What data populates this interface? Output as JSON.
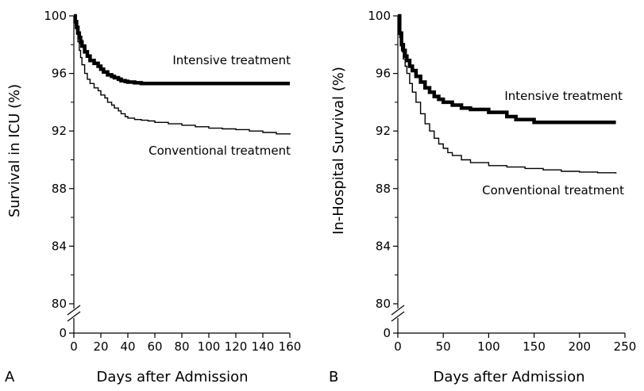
{
  "chart_data": [
    {
      "type": "line",
      "panel": "A",
      "xlabel": "Days after Admission",
      "ylabel": "Survival in ICU (%)",
      "xlim": [
        0,
        160
      ],
      "ylim": [
        80,
        100
      ],
      "y_axis_break": "broken between 0 and 80",
      "xticks": [
        0,
        20,
        40,
        60,
        80,
        100,
        120,
        140,
        160
      ],
      "yticks": [
        0,
        80,
        84,
        88,
        92,
        96,
        100
      ],
      "grid": false,
      "series": [
        {
          "name": "Intensive treatment",
          "color": "#000000",
          "style": "thick",
          "x": [
            0,
            1,
            2,
            3,
            4,
            5,
            6,
            8,
            10,
            12,
            15,
            18,
            20,
            22,
            25,
            28,
            30,
            33,
            35,
            38,
            40,
            45,
            50,
            60,
            80,
            100,
            120,
            140,
            160
          ],
          "y": [
            100,
            99.6,
            99.2,
            98.8,
            98.5,
            98.2,
            97.9,
            97.5,
            97.2,
            96.9,
            96.7,
            96.5,
            96.3,
            96.1,
            95.9,
            95.8,
            95.7,
            95.6,
            95.5,
            95.45,
            95.4,
            95.35,
            95.3,
            95.3,
            95.3,
            95.3,
            95.3,
            95.3,
            95.3
          ]
        },
        {
          "name": "Conventional treatment",
          "color": "#000000",
          "style": "thin",
          "x": [
            0,
            1,
            2,
            3,
            4,
            5,
            6,
            8,
            10,
            12,
            15,
            18,
            20,
            23,
            25,
            28,
            30,
            33,
            35,
            38,
            40,
            45,
            50,
            55,
            60,
            70,
            80,
            90,
            100,
            110,
            120,
            130,
            140,
            150,
            160
          ],
          "y": [
            100,
            99.4,
            98.8,
            98.2,
            97.6,
            97.1,
            96.6,
            96.0,
            95.6,
            95.3,
            95.0,
            94.8,
            94.5,
            94.3,
            94.0,
            93.8,
            93.6,
            93.4,
            93.2,
            93.0,
            92.9,
            92.8,
            92.75,
            92.7,
            92.6,
            92.5,
            92.4,
            92.3,
            92.2,
            92.15,
            92.1,
            92.0,
            91.9,
            91.8,
            91.75
          ]
        }
      ]
    },
    {
      "type": "line",
      "panel": "B",
      "xlabel": "Days after Admission",
      "ylabel": "In-Hospital Survival (%)",
      "xlim": [
        0,
        250
      ],
      "ylim": [
        80,
        100
      ],
      "y_axis_break": "broken between 0 and 80",
      "xticks": [
        0,
        50,
        100,
        150,
        200,
        250
      ],
      "yticks": [
        0,
        80,
        84,
        88,
        92,
        96,
        100
      ],
      "grid": false,
      "series": [
        {
          "name": "Intensive treatment",
          "color": "#000000",
          "style": "thick",
          "x": [
            0,
            2,
            4,
            6,
            8,
            10,
            13,
            16,
            20,
            25,
            30,
            35,
            40,
            45,
            50,
            60,
            70,
            80,
            100,
            120,
            130,
            150,
            180,
            210,
            240
          ],
          "y": [
            100,
            98.8,
            98.0,
            97.6,
            97.2,
            96.9,
            96.5,
            96.2,
            95.8,
            95.4,
            95.0,
            94.7,
            94.4,
            94.2,
            94.0,
            93.8,
            93.6,
            93.5,
            93.3,
            93.0,
            92.8,
            92.6,
            92.6,
            92.6,
            92.6
          ]
        },
        {
          "name": "Conventional treatment",
          "color": "#000000",
          "style": "thin",
          "x": [
            0,
            2,
            4,
            6,
            8,
            10,
            13,
            16,
            20,
            25,
            30,
            35,
            40,
            45,
            50,
            55,
            60,
            70,
            80,
            100,
            120,
            140,
            160,
            180,
            200,
            220,
            240
          ],
          "y": [
            100,
            98.5,
            97.6,
            97.0,
            96.5,
            96.0,
            95.3,
            94.7,
            94.0,
            93.2,
            92.5,
            92.0,
            91.5,
            91.1,
            90.8,
            90.5,
            90.3,
            90.0,
            89.8,
            89.6,
            89.5,
            89.4,
            89.3,
            89.2,
            89.15,
            89.1,
            89.05
          ]
        }
      ]
    }
  ]
}
